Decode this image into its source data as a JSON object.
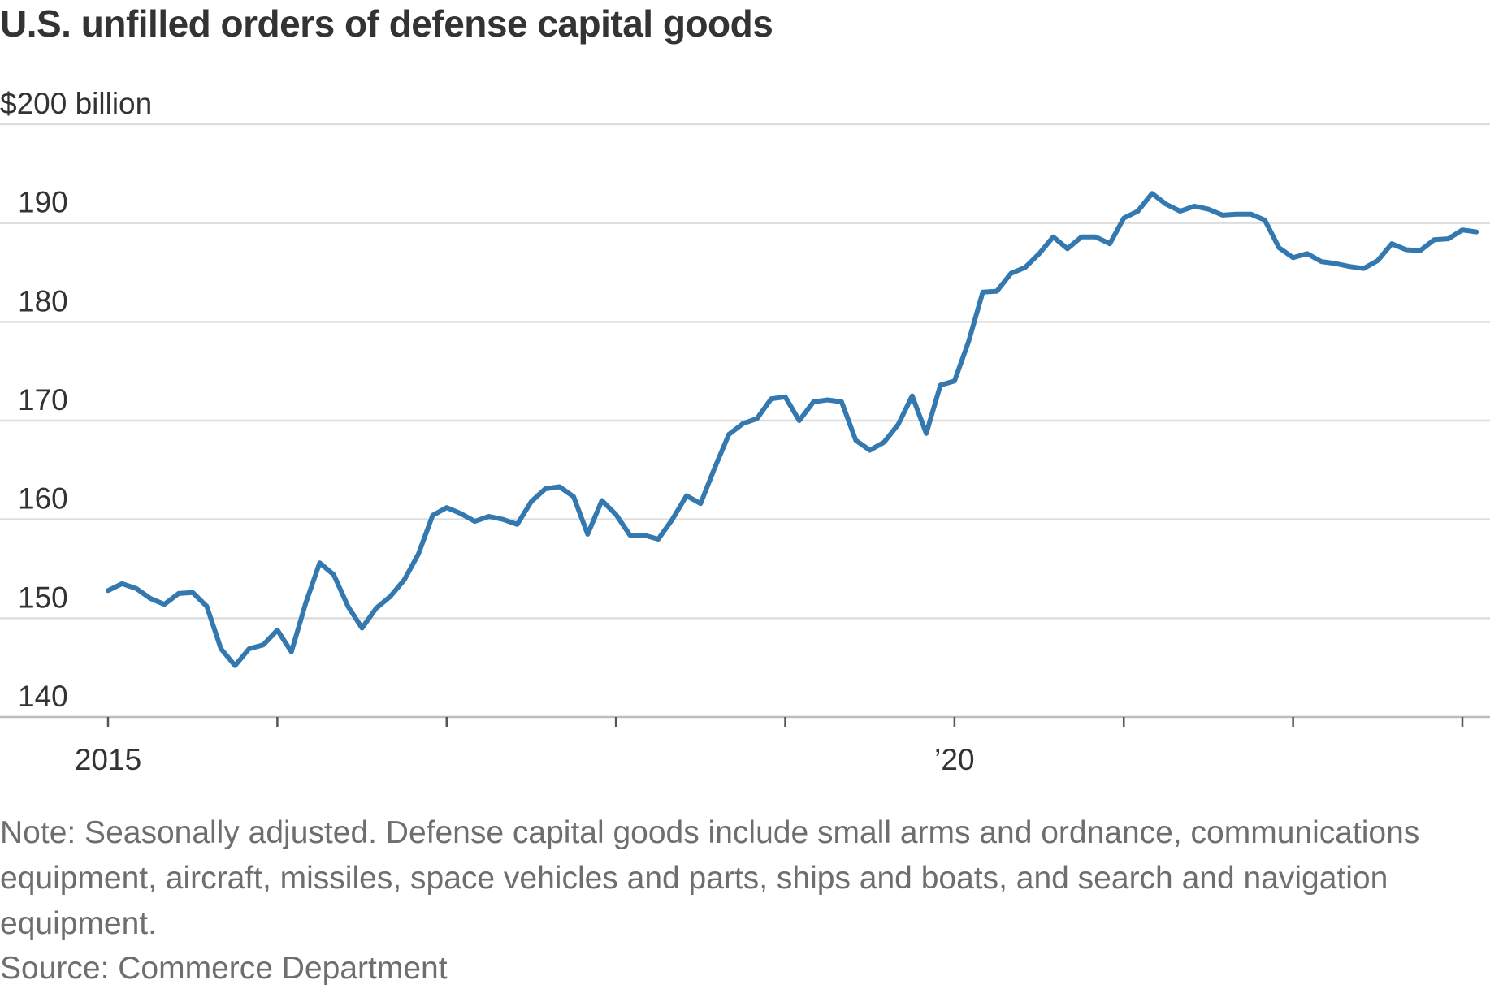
{
  "title": "U.S. unfilled orders of defense capital goods",
  "note": "Note: Seasonally adjusted. Defense capital goods include small arms and ordnance, communications equipment, aircraft, missiles, space vehicles and parts, ships and boats, and search and navigation equipment.",
  "source": "Source: Commerce Department",
  "chart_data": {
    "type": "line",
    "title": "U.S. unfilled orders of defense capital goods",
    "xlabel": "",
    "ylabel": "",
    "y_unit_label": "$200 billion",
    "ylim": [
      140,
      200
    ],
    "yticks": [
      140,
      150,
      160,
      170,
      180,
      190,
      200
    ],
    "ytick_labels": [
      "140",
      "150",
      "160",
      "170",
      "180",
      "190",
      "$200 billion"
    ],
    "xlim": [
      2015,
      2023
    ],
    "xticks": [
      2015,
      2016,
      2017,
      2018,
      2019,
      2020,
      2021,
      2022,
      2023
    ],
    "xtick_labels": [
      {
        "x": 2015,
        "label": "2015"
      },
      {
        "x": 2020,
        "label": "’20"
      }
    ],
    "grid": true,
    "color": "#3478b0",
    "x": [
      2015.0,
      2015.083,
      2015.167,
      2015.25,
      2015.333,
      2015.417,
      2015.5,
      2015.583,
      2015.667,
      2015.75,
      2015.833,
      2015.917,
      2016.0,
      2016.083,
      2016.167,
      2016.25,
      2016.333,
      2016.417,
      2016.5,
      2016.583,
      2016.667,
      2016.75,
      2016.833,
      2016.917,
      2017.0,
      2017.083,
      2017.167,
      2017.25,
      2017.333,
      2017.417,
      2017.5,
      2017.583,
      2017.667,
      2017.75,
      2017.833,
      2017.917,
      2018.0,
      2018.083,
      2018.167,
      2018.25,
      2018.333,
      2018.417,
      2018.5,
      2018.583,
      2018.667,
      2018.75,
      2018.833,
      2018.917,
      2019.0,
      2019.083,
      2019.167,
      2019.25,
      2019.333,
      2019.417,
      2019.5,
      2019.583,
      2019.667,
      2019.75,
      2019.833,
      2019.917,
      2020.0,
      2020.083,
      2020.167,
      2020.25,
      2020.333,
      2020.417,
      2020.5,
      2020.583,
      2020.667,
      2020.75,
      2020.833,
      2020.917,
      2021.0,
      2021.083,
      2021.167,
      2021.25,
      2021.333,
      2021.417,
      2021.5,
      2021.583,
      2021.667,
      2021.75,
      2021.833,
      2021.917,
      2022.0,
      2022.083,
      2022.167,
      2022.25,
      2022.333,
      2022.417,
      2022.5,
      2022.583,
      2022.667,
      2022.75,
      2022.833,
      2022.917,
      2023.0,
      2023.083
    ],
    "series": [
      {
        "values": [
          152.8,
          153.5,
          153.0,
          152.0,
          151.4,
          152.5,
          152.6,
          151.2,
          146.9,
          145.2,
          146.9,
          147.3,
          148.8,
          146.6,
          151.5,
          155.6,
          154.4,
          151.2,
          149.0,
          151.0,
          152.2,
          153.9,
          156.5,
          160.4,
          161.2,
          160.6,
          159.8,
          160.3,
          160.0,
          159.5,
          161.8,
          163.1,
          163.3,
          162.3,
          158.5,
          161.9,
          160.5,
          158.4,
          158.4,
          158.0,
          160.0,
          162.4,
          161.6,
          165.2,
          168.6,
          169.7,
          170.2,
          172.2,
          172.4,
          170.0,
          171.9,
          172.1,
          171.9,
          168.0,
          167.0,
          167.8,
          169.6,
          172.5,
          168.7,
          173.6,
          174.0,
          178.0,
          183.0,
          183.1,
          184.9,
          185.5,
          186.9,
          188.6,
          187.4,
          188.6,
          188.6,
          187.9,
          190.5,
          191.2,
          193.0,
          191.9,
          191.2,
          191.7,
          191.4,
          190.8,
          190.9,
          190.9,
          190.3,
          187.5,
          186.5,
          186.9,
          186.1,
          185.9,
          185.6,
          185.4,
          186.2,
          187.9,
          187.3,
          187.2,
          188.3,
          188.4,
          189.3,
          189.1
        ]
      }
    ]
  }
}
